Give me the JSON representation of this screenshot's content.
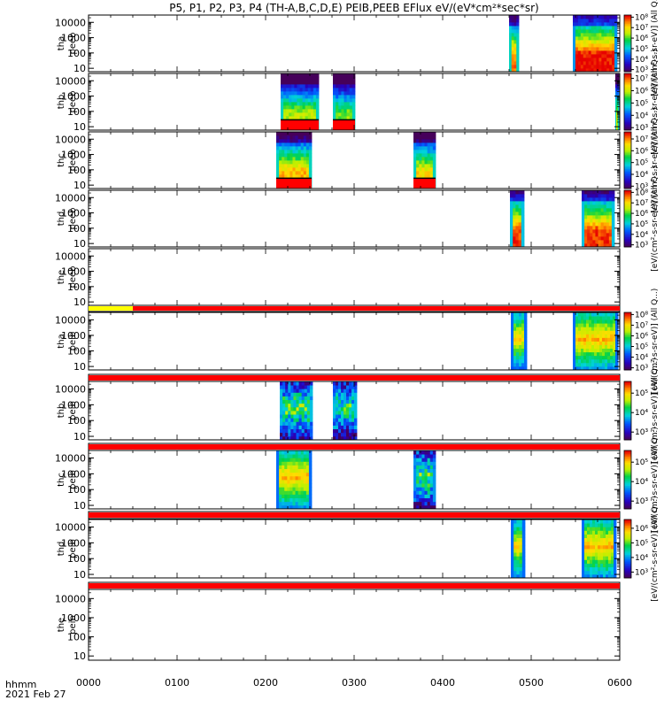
{
  "chart_data": {
    "type": "heatmap",
    "title": "P5, P1, P2, P3, P4 (TH-A,B,C,D,E) PEIB,PEEB EFlux eV/(eV*cm²*sec*sr)",
    "x_axis": {
      "range_hhmm": [
        "0000",
        "0600"
      ],
      "tick_labels": [
        "0000",
        "0100",
        "0200",
        "0300",
        "0400",
        "0500",
        "0600"
      ],
      "label_line1": "hhmm",
      "label_line2": "2021 Feb 27"
    },
    "y_tick_labels": [
      "10",
      "100",
      "1000",
      "10000"
    ],
    "y_scale": "log",
    "y_range_eV": [
      6,
      30000
    ],
    "colorscale": "rainbow (purple-blue-green-yellow-red)",
    "colors": {
      "flag_red": "#ff0000",
      "flag_yellow": "#ffff00",
      "background": "#ffffff"
    },
    "panels": [
      {
        "id": "tha-peeb",
        "ylabel_line1": "tha",
        "ylabel_line2": "peeb",
        "colorbar_ticks": [
          "10³",
          "10⁴",
          "10⁵",
          "10⁶",
          "10⁷",
          "10⁸"
        ],
        "cb_exp_range": [
          2.8,
          8.2
        ],
        "colorbar_label": "[eV/(cm²-s-sr-eV)] (All Q...)",
        "intervals": [
          {
            "start_hour": 4.75,
            "end_hour": 4.86,
            "type": "electron",
            "peak": 0.8,
            "edge_lo": 0.35
          },
          {
            "start_hour": 5.47,
            "end_hour": 5.97,
            "type": "electron",
            "peak": 0.9,
            "edge_lo": 0.25
          }
        ]
      },
      {
        "id": "thb-peeb",
        "ylabel_line1": "thb",
        "ylabel_line2": "peeb",
        "colorbar_ticks": [
          "10³",
          "10⁴",
          "10⁵",
          "10⁶",
          "10⁷"
        ],
        "cb_exp_range": [
          2.8,
          7.4
        ],
        "colorbar_label": "[eV/(cm²-s-sr-eV)] (All Q...)",
        "intervals": [
          {
            "start_hour": 2.17,
            "end_hour": 2.6,
            "type": "electron",
            "peak": 0.6,
            "edge_lo": 0.35,
            "red_floor": true
          },
          {
            "start_hour": 2.76,
            "end_hour": 3.01,
            "type": "electron",
            "peak": 0.55,
            "edge_lo": 0.35,
            "red_floor": true
          },
          {
            "start_hour": 5.95,
            "end_hour": 5.99,
            "type": "electron",
            "peak": 0.6,
            "edge_lo": 0.35
          }
        ]
      },
      {
        "id": "thc-peeb",
        "ylabel_line1": "thc",
        "ylabel_line2": "peeb",
        "colorbar_ticks": [
          "10³",
          "10⁴",
          "10⁵",
          "10⁶",
          "10⁷"
        ],
        "cb_exp_range": [
          2.8,
          7.6
        ],
        "colorbar_label": "[eV/(cm²-s-sr-eV)] (All Q...)",
        "intervals": [
          {
            "start_hour": 2.12,
            "end_hour": 2.52,
            "type": "electron",
            "peak": 0.75,
            "edge_lo": 0.35,
            "red_floor": true
          },
          {
            "start_hour": 3.67,
            "end_hour": 3.92,
            "type": "electron",
            "peak": 0.7,
            "edge_lo": 0.35,
            "red_floor": true
          }
        ]
      },
      {
        "id": "thd-peeb",
        "ylabel_line1": "thd",
        "ylabel_line2": "peeb",
        "colorbar_ticks": [
          "10³",
          "10⁴",
          "10⁵",
          "10⁶",
          "10⁷",
          "10⁸"
        ],
        "cb_exp_range": [
          2.8,
          8.2
        ],
        "colorbar_label": "[eV/(cm²-s-sr-eV)] (All Q...)",
        "intervals": [
          {
            "start_hour": 4.76,
            "end_hour": 4.92,
            "type": "electron",
            "peak": 0.85,
            "edge_lo": 0.3
          },
          {
            "start_hour": 5.57,
            "end_hour": 5.94,
            "type": "electron",
            "peak": 0.85,
            "edge_lo": 0.3
          }
        ]
      },
      {
        "id": "the-peeb",
        "ylabel_line1": "the",
        "ylabel_line2": "peeb",
        "colorbar_ticks": [],
        "intervals": [],
        "flag_bar": [
          {
            "start_hour": 0.0,
            "end_hour": 0.5,
            "color": "yellow"
          },
          {
            "start_hour": 0.5,
            "end_hour": 6.0,
            "color": "red"
          }
        ]
      },
      {
        "id": "tha-peib",
        "ylabel_line1": "tha",
        "ylabel_line2": "peib",
        "colorbar_ticks": [
          "10³",
          "10⁴",
          "10⁵",
          "10⁶",
          "10⁷",
          "10⁸"
        ],
        "cb_exp_range": [
          2.8,
          8.2
        ],
        "colorbar_label": "[eV/(cm²-s-sr-eV)] (All Q...)",
        "intervals": [
          {
            "start_hour": 4.77,
            "end_hour": 4.95,
            "type": "ion",
            "peak": 0.8,
            "edge_lo": 0.2
          },
          {
            "start_hour": 5.47,
            "end_hour": 5.98,
            "type": "ion",
            "peak": 0.85,
            "edge_lo": 0.2
          }
        ],
        "flag_bar": [
          {
            "start_hour": 0.0,
            "end_hour": 6.0,
            "color": "red"
          }
        ]
      },
      {
        "id": "thb-peib",
        "ylabel_line1": "thb",
        "ylabel_line2": "peib",
        "colorbar_ticks": [
          "10³",
          "10⁴",
          "10⁵"
        ],
        "cb_exp_range": [
          2.6,
          5.6
        ],
        "colorbar_label": "[eV/(cm²-s-sr-eV)] (All Q...)",
        "intervals": [
          {
            "start_hour": 2.16,
            "end_hour": 2.53,
            "type": "ion-noisy",
            "peak": 0.6,
            "edge_lo": 0.3
          },
          {
            "start_hour": 2.76,
            "end_hour": 3.03,
            "type": "ion-noisy",
            "peak": 0.55,
            "edge_lo": 0.3
          }
        ],
        "flag_bar": [
          {
            "start_hour": 0.0,
            "end_hour": 6.0,
            "color": "red"
          }
        ]
      },
      {
        "id": "thc-peib",
        "ylabel_line1": "thc",
        "ylabel_line2": "peib",
        "colorbar_ticks": [
          "10³",
          "10⁴",
          "10⁵"
        ],
        "cb_exp_range": [
          2.6,
          5.6
        ],
        "colorbar_label": "[eV/(cm²-s-sr-eV)] (All Q...)",
        "intervals": [
          {
            "start_hour": 2.12,
            "end_hour": 2.52,
            "type": "ion",
            "peak": 0.85,
            "edge_lo": 0.2
          },
          {
            "start_hour": 3.67,
            "end_hour": 3.92,
            "type": "ion-noisy",
            "peak": 0.6,
            "edge_lo": 0.25
          }
        ],
        "flag_bar": [
          {
            "start_hour": 0.0,
            "end_hour": 6.0,
            "color": "red"
          }
        ]
      },
      {
        "id": "thd-peib",
        "ylabel_line1": "thd",
        "ylabel_line2": "peib",
        "colorbar_ticks": [
          "10³",
          "10⁴",
          "10⁵",
          "10⁶"
        ],
        "cb_exp_range": [
          2.6,
          6.6
        ],
        "colorbar_label": "[eV/(cm²-s-sr-eV)] (All Q...)",
        "intervals": [
          {
            "start_hour": 4.77,
            "end_hour": 4.93,
            "type": "ion",
            "peak": 0.8,
            "edge_lo": 0.2
          },
          {
            "start_hour": 5.57,
            "end_hour": 5.96,
            "type": "ion",
            "peak": 0.85,
            "edge_lo": 0.2
          }
        ],
        "flag_bar": [
          {
            "start_hour": 0.0,
            "end_hour": 6.0,
            "color": "red"
          }
        ]
      },
      {
        "id": "the-peib",
        "ylabel_line1": "the",
        "ylabel_line2": "peib",
        "colorbar_ticks": [],
        "intervals": []
      }
    ]
  }
}
